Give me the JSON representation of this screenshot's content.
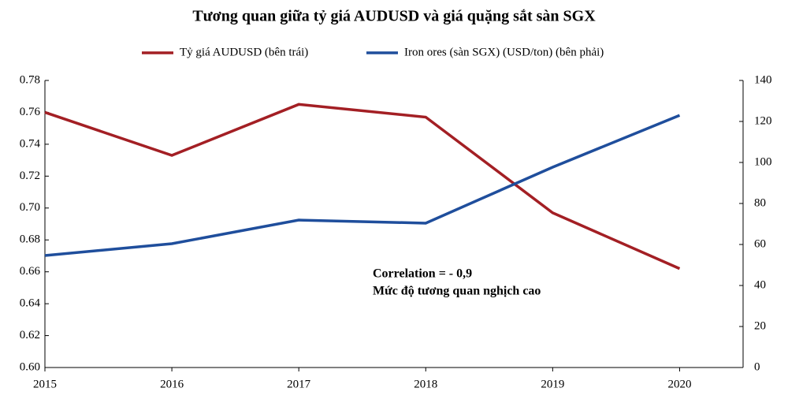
{
  "chart_data": {
    "type": "line",
    "title": "Tương quan  giữa tỷ giá AUDUSD và giá quặng sắt sàn SGX",
    "x": [
      2015,
      2016,
      2017,
      2018,
      2019,
      2020
    ],
    "xlim": [
      2015,
      2020.5
    ],
    "xticks": [
      2015,
      2016,
      2017,
      2018,
      2019,
      2020
    ],
    "ylim": [
      0.6,
      0.78
    ],
    "yticks": [
      {
        "value": 0.6,
        "label": "0.60"
      },
      {
        "value": 0.62,
        "label": "0.62"
      },
      {
        "value": 0.64,
        "label": "0.64"
      },
      {
        "value": 0.66,
        "label": "0.66"
      },
      {
        "value": 0.68,
        "label": "0.68"
      },
      {
        "value": 0.7,
        "label": "0.70"
      },
      {
        "value": 0.72,
        "label": "0.72"
      },
      {
        "value": 0.74,
        "label": "0.74"
      },
      {
        "value": 0.76,
        "label": "0.76"
      },
      {
        "value": 0.78,
        "label": "0.78"
      }
    ],
    "y2lim": [
      0,
      140
    ],
    "y2ticks": [
      0,
      20,
      40,
      60,
      80,
      100,
      120,
      140
    ],
    "grid": false,
    "legend": "top",
    "series": [
      {
        "name": "Tỷ giá AUDUSD (bên trái)",
        "color": "#a31f24",
        "values": [
          0.76,
          0.733,
          0.765,
          0.757,
          0.697,
          0.662
        ]
      },
      {
        "name": "Iron ores (sàn SGX) (USD/ton) (bên phải)",
        "color": "#1f4e9c",
        "axis": "y2",
        "values": [
          54.6,
          60.4,
          71.9,
          70.4,
          97.7,
          123
        ]
      }
    ],
    "annotations": [
      "Correlation  = - 0,9",
      "Mức độ tương quan  nghịch  cao"
    ]
  }
}
